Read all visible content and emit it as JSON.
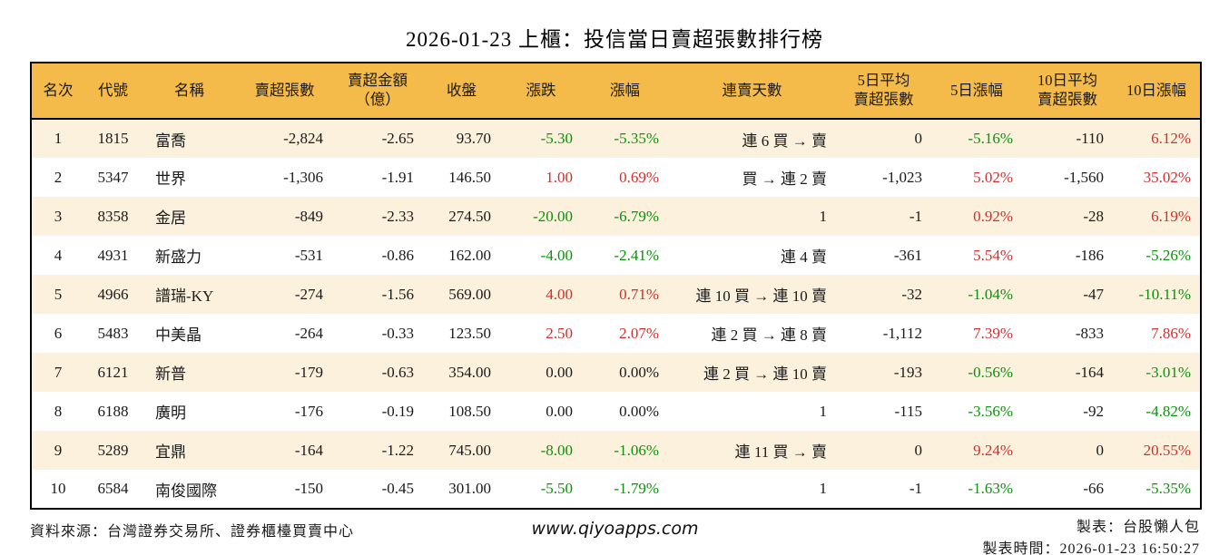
{
  "title": "2026-01-23 上櫃：投信當日賣超張數排行榜",
  "colors": {
    "header_bg": "#F4BB4B",
    "row_alt_bg": "#FBF1DC",
    "row_main_bg": "#FFFFFF",
    "up_red": "#D02F2F",
    "down_green": "#0A930A",
    "border": "#000000"
  },
  "table": {
    "headers": [
      "名次",
      "代號",
      "名稱",
      "賣超張數",
      "賣超金額\n（億）",
      "收盤",
      "漲跌",
      "漲幅",
      "連賣天數",
      "5日平均\n賣超張數",
      "5日漲幅",
      "10日平均\n賣超張數",
      "10日漲幅"
    ],
    "rows": [
      {
        "rank": "1",
        "code": "1815",
        "name": "富喬",
        "net_sell": "-2,824",
        "amount": "-2.65",
        "close": "93.70",
        "change": "-5.30",
        "change_dir": "down",
        "pct": "-5.35%",
        "pct_dir": "down",
        "streak": "連 6 買 → 賣",
        "avg5": "0",
        "pct5": "-5.16%",
        "pct5_dir": "down",
        "avg10": "-110",
        "pct10": "6.12%",
        "pct10_dir": "up"
      },
      {
        "rank": "2",
        "code": "5347",
        "name": "世界",
        "net_sell": "-1,306",
        "amount": "-1.91",
        "close": "146.50",
        "change": "1.00",
        "change_dir": "up",
        "pct": "0.69%",
        "pct_dir": "up",
        "streak": "買 → 連 2 賣",
        "avg5": "-1,023",
        "pct5": "5.02%",
        "pct5_dir": "up",
        "avg10": "-1,560",
        "pct10": "35.02%",
        "pct10_dir": "up"
      },
      {
        "rank": "3",
        "code": "8358",
        "name": "金居",
        "net_sell": "-849",
        "amount": "-2.33",
        "close": "274.50",
        "change": "-20.00",
        "change_dir": "down",
        "pct": "-6.79%",
        "pct_dir": "down",
        "streak": "1",
        "avg5": "-1",
        "pct5": "0.92%",
        "pct5_dir": "up",
        "avg10": "-28",
        "pct10": "6.19%",
        "pct10_dir": "up"
      },
      {
        "rank": "4",
        "code": "4931",
        "name": "新盛力",
        "net_sell": "-531",
        "amount": "-0.86",
        "close": "162.00",
        "change": "-4.00",
        "change_dir": "down",
        "pct": "-2.41%",
        "pct_dir": "down",
        "streak": "連 4 賣",
        "avg5": "-361",
        "pct5": "5.54%",
        "pct5_dir": "up",
        "avg10": "-186",
        "pct10": "-5.26%",
        "pct10_dir": "down"
      },
      {
        "rank": "5",
        "code": "4966",
        "name": "譜瑞-KY",
        "net_sell": "-274",
        "amount": "-1.56",
        "close": "569.00",
        "change": "4.00",
        "change_dir": "up",
        "pct": "0.71%",
        "pct_dir": "up",
        "streak": "連 10 買 → 連 10 賣",
        "avg5": "-32",
        "pct5": "-1.04%",
        "pct5_dir": "down",
        "avg10": "-47",
        "pct10": "-10.11%",
        "pct10_dir": "down"
      },
      {
        "rank": "6",
        "code": "5483",
        "name": "中美晶",
        "net_sell": "-264",
        "amount": "-0.33",
        "close": "123.50",
        "change": "2.50",
        "change_dir": "up",
        "pct": "2.07%",
        "pct_dir": "up",
        "streak": "連 2 買 → 連 8 賣",
        "avg5": "-1,112",
        "pct5": "7.39%",
        "pct5_dir": "up",
        "avg10": "-833",
        "pct10": "7.86%",
        "pct10_dir": "up"
      },
      {
        "rank": "7",
        "code": "6121",
        "name": "新普",
        "net_sell": "-179",
        "amount": "-0.63",
        "close": "354.00",
        "change": "0.00",
        "change_dir": "flat",
        "pct": "0.00%",
        "pct_dir": "flat",
        "streak": "連 2 買 → 連 10 賣",
        "avg5": "-193",
        "pct5": "-0.56%",
        "pct5_dir": "down",
        "avg10": "-164",
        "pct10": "-3.01%",
        "pct10_dir": "down"
      },
      {
        "rank": "8",
        "code": "6188",
        "name": "廣明",
        "net_sell": "-176",
        "amount": "-0.19",
        "close": "108.50",
        "change": "0.00",
        "change_dir": "flat",
        "pct": "0.00%",
        "pct_dir": "flat",
        "streak": "1",
        "avg5": "-115",
        "pct5": "-3.56%",
        "pct5_dir": "down",
        "avg10": "-92",
        "pct10": "-4.82%",
        "pct10_dir": "down"
      },
      {
        "rank": "9",
        "code": "5289",
        "name": "宜鼎",
        "net_sell": "-164",
        "amount": "-1.22",
        "close": "745.00",
        "change": "-8.00",
        "change_dir": "down",
        "pct": "-1.06%",
        "pct_dir": "down",
        "streak": "連 11 買 → 賣",
        "avg5": "0",
        "pct5": "9.24%",
        "pct5_dir": "up",
        "avg10": "0",
        "pct10": "20.55%",
        "pct10_dir": "up"
      },
      {
        "rank": "10",
        "code": "6584",
        "name": "南俊國際",
        "net_sell": "-150",
        "amount": "-0.45",
        "close": "301.00",
        "change": "-5.50",
        "change_dir": "down",
        "pct": "-1.79%",
        "pct_dir": "down",
        "streak": "1",
        "avg5": "-1",
        "pct5": "-1.63%",
        "pct5_dir": "down",
        "avg10": "-66",
        "pct10": "-5.35%",
        "pct10_dir": "down"
      }
    ]
  },
  "footer": {
    "source": "資料來源：台灣證券交易所、證券櫃檯買賣中心",
    "website": "www.qiyoapps.com",
    "creator": "製表：台股懶人包",
    "created_time": "製表時間：2026-01-23 16:50:27"
  }
}
